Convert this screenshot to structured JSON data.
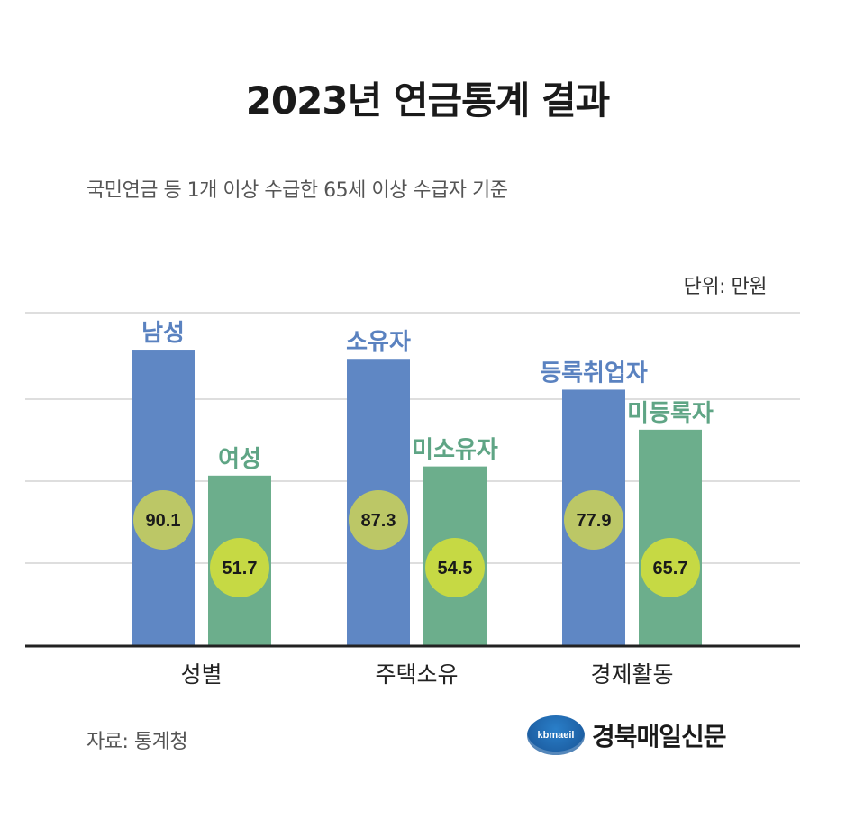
{
  "header": {
    "title": "2023년 연금통계 결과",
    "subtitle": "국민연금 등 1개 이상 수급한 65세 이상 수급자 기준",
    "unit": "단위: 만원"
  },
  "footer": {
    "source": "자료: 통계청",
    "logo_badge": "kbmaeil",
    "logo_name": "경북매일신문"
  },
  "colors": {
    "series1_bar": "#5f87c4",
    "series2_bar": "#6cae8c",
    "series1_label": "#5a82c0",
    "series2_label": "#5fa585",
    "series1_circle": "#bcc766",
    "series2_circle": "#c6d944",
    "grid": "#bdbdbd",
    "axis": "#222222"
  },
  "chart_data": {
    "type": "bar",
    "categories": [
      "성별",
      "주택소유",
      "경제활동"
    ],
    "groups": [
      {
        "category": "성별",
        "bars": [
          {
            "label": "남성",
            "value": 90.1
          },
          {
            "label": "여성",
            "value": 51.7
          }
        ]
      },
      {
        "category": "주택소유",
        "bars": [
          {
            "label": "소유자",
            "value": 87.3
          },
          {
            "label": "미소유자",
            "value": 54.5
          }
        ]
      },
      {
        "category": "경제활동",
        "bars": [
          {
            "label": "등록취업자",
            "value": 77.9
          },
          {
            "label": "미등록자",
            "value": 65.7
          }
        ]
      }
    ],
    "ylim": [
      0,
      100
    ],
    "grid": true,
    "title": "2023년 연금통계 결과",
    "xlabel": "",
    "ylabel": ""
  }
}
